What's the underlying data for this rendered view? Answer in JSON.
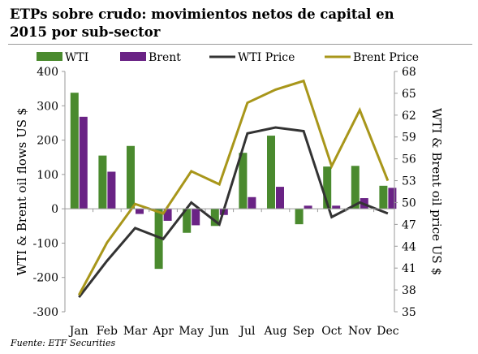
{
  "title_line1": "ETPs sobre crudo: movimientos netos de capital en",
  "title_line2": "2015 por sub-sector",
  "source": "Fuente: ETF Securities",
  "colors": {
    "wti_bar": "#4a8a2e",
    "brent_bar": "#6a2385",
    "wti_price": "#333333",
    "brent_price": "#a8961a"
  },
  "chart_data": {
    "type": "bar",
    "categories": [
      "Jan",
      "Feb",
      "Mar",
      "Apr",
      "May",
      "Jun",
      "Jul",
      "Aug",
      "Sep",
      "Oct",
      "Nov",
      "Dec"
    ],
    "series": [
      {
        "name": "WTI",
        "type": "bar",
        "axis": "left",
        "values": [
          338,
          155,
          183,
          -175,
          -70,
          -50,
          163,
          213,
          -45,
          123,
          125,
          67
        ]
      },
      {
        "name": "Brent",
        "type": "bar",
        "axis": "left",
        "values": [
          268,
          108,
          -15,
          -35,
          -48,
          -18,
          34,
          64,
          9,
          9,
          31,
          61
        ]
      },
      {
        "name": "WTI Price",
        "type": "line",
        "axis": "right",
        "values": [
          37,
          42,
          46.5,
          45,
          50,
          47,
          59.5,
          60.3,
          59.8,
          48,
          50,
          48.5
        ]
      },
      {
        "name": "Brent Price",
        "type": "line",
        "axis": "right",
        "values": [
          37.3,
          44.5,
          49.8,
          48.5,
          54.3,
          52.5,
          63.7,
          65.5,
          66.7,
          55,
          62.7,
          53
        ]
      }
    ],
    "ylabel": "WTI & Brent oil flows US $",
    "y2label": "WTI & Brent oil price US $",
    "ylim": [
      -300,
      400
    ],
    "yticks": [
      "400",
      "300",
      "200",
      "100",
      "0",
      "-100",
      "-200",
      "-300"
    ],
    "y2lim": [
      35,
      68
    ],
    "y2ticks": [
      "68",
      "65",
      "62",
      "59",
      "56",
      "53",
      "50",
      "47",
      "44",
      "41",
      "38",
      "35"
    ],
    "legend_position": "top",
    "grid": false
  }
}
